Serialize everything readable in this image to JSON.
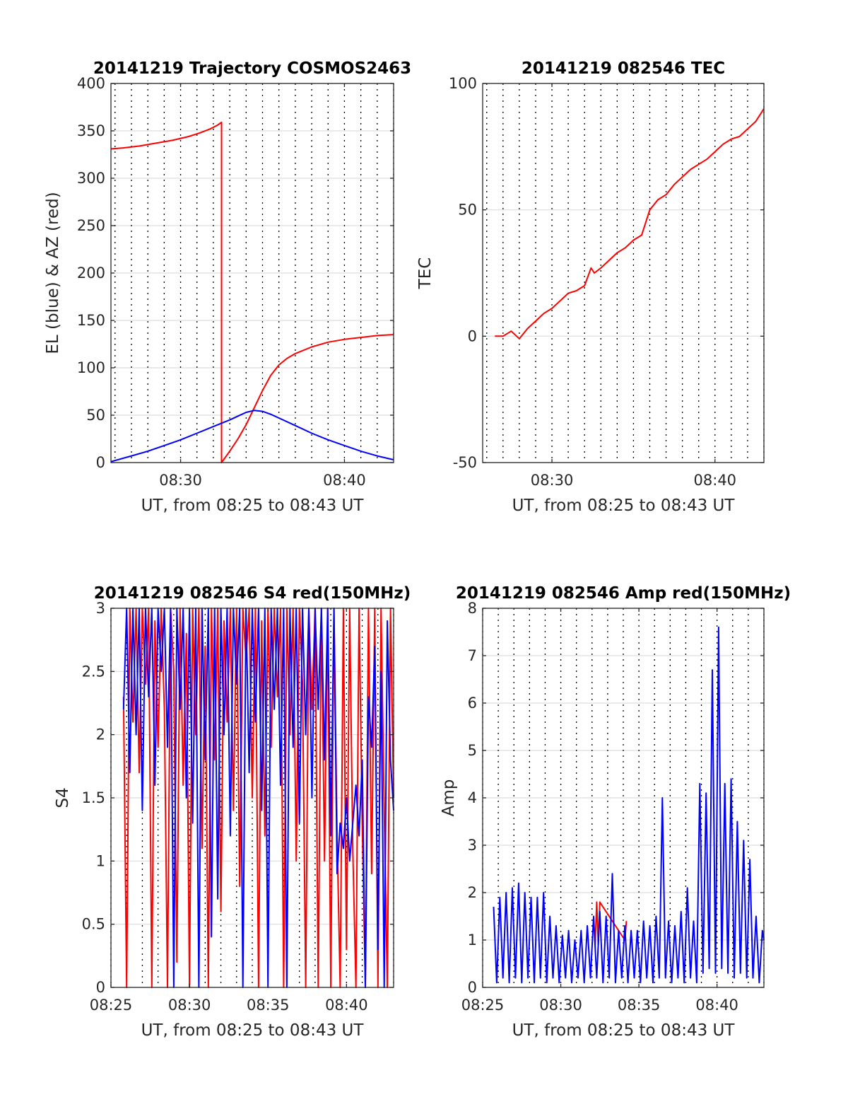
{
  "chart_data": [
    {
      "id": "traj",
      "type": "line",
      "title": "20141219 Trajectory COSMOS2463",
      "xlabel": "UT, from 08:25 to 08:43 UT",
      "ylabel": "EL (blue) & AZ (red)",
      "xlim_min": [
        25.75,
        43
      ],
      "ylim": [
        0,
        400
      ],
      "xticks": [
        {
          "v": 30,
          "label": "08:30"
        },
        {
          "v": 40,
          "label": "08:40"
        }
      ],
      "yticks": [
        {
          "v": 0,
          "label": "0"
        },
        {
          "v": 50,
          "label": "50"
        },
        {
          "v": 100,
          "label": "100"
        },
        {
          "v": 150,
          "label": "150"
        },
        {
          "v": 200,
          "label": "200"
        },
        {
          "v": 250,
          "label": "250"
        },
        {
          "v": 300,
          "label": "300"
        },
        {
          "v": 350,
          "label": "350"
        },
        {
          "v": 400,
          "label": "400"
        }
      ],
      "minute_gridlines": true,
      "series": [
        {
          "color": "#ff0000",
          "x": [
            25.75,
            26.5,
            27.5,
            28.5,
            29.5,
            30.5,
            31.2,
            31.8,
            32.25,
            32.5,
            32.5,
            33.0,
            33.5,
            34.0,
            34.5,
            35.0,
            35.5,
            36.0,
            36.5,
            37.0,
            38.0,
            39.0,
            40.0,
            41.0,
            42.0,
            43.0
          ],
          "y": [
            331,
            332,
            334,
            337,
            340,
            344,
            348,
            352,
            356,
            359,
            0,
            12,
            25,
            40,
            58,
            76,
            92,
            103,
            110,
            115,
            122,
            127,
            130,
            132,
            134,
            135
          ]
        },
        {
          "color": "#0000ff",
          "x": [
            25.75,
            27.0,
            28.0,
            29.0,
            30.0,
            31.0,
            32.0,
            33.0,
            33.5,
            34.0,
            34.5,
            35.0,
            35.5,
            36.0,
            37.0,
            38.0,
            39.0,
            40.0,
            41.0,
            42.0,
            43.0
          ],
          "y": [
            1,
            7,
            12,
            18,
            24,
            31,
            38,
            45,
            49,
            53,
            55,
            54,
            51,
            47,
            39,
            31,
            24,
            18,
            12,
            7,
            3
          ]
        }
      ]
    },
    {
      "id": "tec",
      "type": "line",
      "title": "20141219 082546 TEC",
      "xlabel": "UT, from 08:25 to 08:43 UT",
      "ylabel": "TEC",
      "xlim_min": [
        25.75,
        43
      ],
      "ylim": [
        -50,
        100
      ],
      "xticks": [
        {
          "v": 30,
          "label": "08:30"
        },
        {
          "v": 40,
          "label": "08:40"
        }
      ],
      "yticks": [
        {
          "v": -50,
          "label": "-50"
        },
        {
          "v": 0,
          "label": "0"
        },
        {
          "v": 50,
          "label": "50"
        },
        {
          "v": 100,
          "label": "100"
        }
      ],
      "minute_gridlines": true,
      "series": [
        {
          "color": "#ff0000",
          "x": [
            26.5,
            27.0,
            27.5,
            28.0,
            28.5,
            29.0,
            29.5,
            30.0,
            30.5,
            31.0,
            31.5,
            32.0,
            32.4,
            32.6,
            33.0,
            33.5,
            34.0,
            34.5,
            35.0,
            35.5,
            36.0,
            36.5,
            37.0,
            37.5,
            38.0,
            38.5,
            39.0,
            39.5,
            40.0,
            40.5,
            41.0,
            41.5,
            42.0,
            42.5,
            43.0
          ],
          "y": [
            0,
            0,
            2,
            -1,
            3,
            6,
            9,
            11,
            14,
            17,
            18,
            20,
            27,
            25,
            27,
            30,
            33,
            35,
            38,
            40,
            50,
            54,
            56,
            60,
            63,
            66,
            68,
            70,
            73,
            76,
            78,
            79,
            82,
            85,
            90
          ]
        }
      ]
    },
    {
      "id": "s4",
      "type": "line",
      "title": "20141219 082546 S4 red(150MHz)",
      "xlabel": "UT, from 08:25 to 08:43 UT",
      "ylabel": "S4",
      "xlim_min": [
        25,
        43
      ],
      "ylim": [
        0,
        3
      ],
      "xticks": [
        {
          "v": 25,
          "label": "08:25"
        },
        {
          "v": 30,
          "label": "08:30"
        },
        {
          "v": 35,
          "label": "08:35"
        },
        {
          "v": 40,
          "label": "08:40"
        }
      ],
      "yticks": [
        {
          "v": 0,
          "label": "0"
        },
        {
          "v": 0.5,
          "label": "0.5"
        },
        {
          "v": 1,
          "label": "1"
        },
        {
          "v": 1.5,
          "label": "1.5"
        },
        {
          "v": 2,
          "label": "2"
        },
        {
          "v": 2.5,
          "label": "2.5"
        },
        {
          "v": 3,
          "label": "3"
        }
      ],
      "minute_gridlines": true,
      "series": [
        {
          "color": "#ff0000",
          "x": [
            25.8,
            26.0,
            26.2,
            26.4,
            26.6,
            26.8,
            27.0,
            27.2,
            27.4,
            27.6,
            27.8,
            28.0,
            28.2,
            28.4,
            28.6,
            28.8,
            29.0,
            29.2,
            29.4,
            29.6,
            29.8,
            30.0,
            30.2,
            30.4,
            30.6,
            30.8,
            31.0,
            31.2,
            31.4,
            31.6,
            31.8,
            32.0,
            32.2,
            32.4,
            32.6,
            32.8,
            33.0,
            33.2,
            33.4,
            33.6,
            33.8,
            34.0,
            34.2,
            34.4,
            34.6,
            34.8,
            35.0,
            35.2,
            35.4,
            35.6,
            35.8,
            36.0,
            36.2,
            36.4,
            36.6,
            36.8,
            37.0,
            37.2,
            37.4,
            37.6,
            37.8,
            38.0,
            38.2,
            38.4,
            38.6,
            38.8,
            39.0,
            39.2,
            39.4,
            39.6,
            39.8,
            40.0,
            40.2,
            40.4,
            40.6,
            40.8,
            41.0,
            41.2,
            41.4,
            41.6,
            41.8,
            42.0,
            42.2,
            42.4,
            42.6,
            42.8,
            43.0
          ],
          "y": [
            2.3,
            0,
            3,
            2.1,
            3,
            1.7,
            3,
            2.4,
            3,
            0,
            2.9,
            1.9,
            3,
            2.2,
            0,
            3,
            2.5,
            0.2,
            3,
            1.6,
            2.8,
            0,
            3,
            2,
            3,
            1.1,
            2.7,
            0,
            3,
            1.8,
            3,
            0.6,
            2.9,
            2.1,
            3,
            1.4,
            3,
            0.8,
            3,
            2.6,
            3,
            1.5,
            3,
            0,
            2.9,
            1.2,
            3,
            1.9,
            3,
            2.3,
            3,
            0,
            3,
            2.0,
            3,
            1.0,
            3,
            2.4,
            0,
            3,
            2.2,
            3,
            0,
            3,
            1.0,
            3,
            0,
            3,
            1.2,
            0,
            3,
            0.3,
            3,
            1.1,
            0,
            3,
            1.3,
            0,
            3,
            0.9,
            3,
            0,
            3,
            1.4,
            0,
            3,
            1.5
          ]
        },
        {
          "color": "#0000ff",
          "x": [
            25.8,
            26.0,
            26.2,
            26.4,
            26.6,
            26.8,
            27.0,
            27.2,
            27.4,
            27.6,
            27.8,
            28.0,
            28.2,
            28.4,
            28.6,
            28.8,
            29.0,
            29.2,
            29.4,
            29.6,
            29.8,
            30.0,
            30.2,
            30.4,
            30.6,
            30.8,
            31.0,
            31.2,
            31.4,
            31.6,
            31.8,
            32.0,
            32.2,
            32.4,
            32.6,
            32.8,
            33.0,
            33.2,
            33.4,
            33.6,
            33.8,
            34.0,
            34.2,
            34.4,
            34.6,
            34.8,
            35.0,
            35.2,
            35.4,
            35.6,
            35.8,
            36.0,
            36.2,
            36.4,
            36.6,
            36.8,
            37.0,
            37.2,
            37.4,
            37.6,
            37.8,
            38.0,
            38.2,
            38.4,
            38.6,
            38.8,
            39.0,
            39.2,
            39.4,
            39.6,
            39.8,
            40.0,
            40.2,
            40.4,
            40.6,
            40.8,
            41.0,
            41.2,
            41.4,
            41.6,
            41.8,
            42.0,
            42.2,
            42.4,
            42.6,
            42.8,
            43.0
          ],
          "y": [
            2.2,
            3,
            1.7,
            3,
            2.0,
            3,
            1.4,
            3,
            2.3,
            3,
            1.6,
            3,
            2.5,
            3,
            1.9,
            3,
            0,
            3,
            2.2,
            3,
            1.5,
            3,
            1.3,
            3,
            0,
            3,
            1.8,
            3,
            0.4,
            3,
            0.7,
            3,
            2.0,
            3,
            1.2,
            3,
            2.4,
            3,
            0,
            3,
            1.7,
            3,
            2.1,
            3,
            1.4,
            3,
            0,
            3,
            2.2,
            3,
            1.6,
            3,
            0,
            3,
            1.9,
            3,
            1.3,
            3,
            2.0,
            3,
            1.5,
            3,
            2.2,
            3,
            1.8,
            3,
            1.2,
            3,
            0.9,
            1.3,
            1.1,
            1.5,
            1.0,
            1.3,
            1.6,
            1.2,
            1.8,
            0,
            2.3,
            1.9,
            2.7,
            0.3,
            2.5,
            0,
            2.9,
            1.8,
            1.4
          ]
        }
      ]
    },
    {
      "id": "amp",
      "type": "line",
      "title": "20141219 082546 Amp red(150MHz)",
      "xlabel": "UT, from 08:25 to 08:43 UT",
      "ylabel": "Amp",
      "xlim_min": [
        25,
        43
      ],
      "ylim": [
        0,
        8
      ],
      "xticks": [
        {
          "v": 25,
          "label": "08:25"
        },
        {
          "v": 30,
          "label": "08:30"
        },
        {
          "v": 35,
          "label": "08:35"
        },
        {
          "v": 40,
          "label": "08:40"
        }
      ],
      "yticks": [
        {
          "v": 0,
          "label": "0"
        },
        {
          "v": 1,
          "label": "1"
        },
        {
          "v": 2,
          "label": "2"
        },
        {
          "v": 3,
          "label": "3"
        },
        {
          "v": 4,
          "label": "4"
        },
        {
          "v": 5,
          "label": "5"
        },
        {
          "v": 6,
          "label": "6"
        },
        {
          "v": 7,
          "label": "7"
        },
        {
          "v": 8,
          "label": "8"
        }
      ],
      "minute_gridlines": true,
      "series": [
        {
          "color": "#ff0000",
          "x": [
            32.2,
            32.3,
            32.4,
            32.5,
            34.1,
            34.2
          ],
          "y": [
            0.9,
            1.8,
            0.9,
            1.8,
            1.0,
            1.4
          ]
        },
        {
          "color": "#0000ff",
          "x": [
            25.7,
            25.9,
            26.1,
            26.3,
            26.5,
            26.7,
            26.9,
            27.1,
            27.3,
            27.5,
            27.7,
            27.9,
            28.1,
            28.3,
            28.5,
            28.7,
            28.9,
            29.1,
            29.3,
            29.5,
            29.7,
            29.9,
            30.1,
            30.3,
            30.5,
            30.7,
            30.9,
            31.1,
            31.3,
            31.5,
            31.7,
            31.9,
            32.1,
            32.3,
            32.5,
            32.7,
            32.9,
            33.1,
            33.3,
            33.5,
            33.7,
            33.9,
            34.1,
            34.3,
            34.5,
            34.7,
            34.9,
            35.1,
            35.3,
            35.5,
            35.7,
            35.9,
            36.1,
            36.3,
            36.5,
            36.7,
            36.9,
            37.1,
            37.3,
            37.5,
            37.7,
            37.9,
            38.1,
            38.3,
            38.5,
            38.7,
            38.9,
            39.1,
            39.3,
            39.5,
            39.7,
            39.9,
            40.1,
            40.3,
            40.5,
            40.7,
            40.9,
            41.1,
            41.3,
            41.5,
            41.7,
            41.9,
            42.1,
            42.3,
            42.5,
            42.7,
            42.9,
            43.0
          ],
          "y": [
            1.7,
            0.1,
            1.9,
            0.2,
            2.0,
            0.1,
            2.1,
            0.2,
            2.2,
            0.1,
            2.0,
            0.2,
            1.9,
            0.1,
            1.9,
            0.2,
            2.0,
            0.1,
            1.5,
            0.2,
            1.3,
            0.1,
            1.1,
            0.2,
            1.2,
            0.1,
            1.0,
            0.2,
            1.2,
            0.1,
            1.3,
            0.2,
            1.5,
            0.2,
            1.6,
            0.1,
            1.5,
            0.2,
            2.4,
            0.1,
            1.2,
            0.2,
            1.3,
            0.1,
            1.2,
            0.2,
            1.2,
            0.1,
            1.4,
            0.2,
            1.3,
            0.1,
            1.5,
            0.2,
            4.0,
            0.2,
            1.4,
            0.1,
            1.3,
            0.2,
            1.6,
            0.1,
            2.1,
            0.2,
            1.4,
            0.1,
            4.3,
            0.3,
            4.1,
            0.4,
            6.7,
            0.3,
            7.6,
            0.4,
            4.3,
            0.3,
            4.4,
            0.2,
            3.5,
            0.3,
            3.1,
            0.2,
            2.7,
            0.2,
            1.5,
            0.1,
            1.2,
            1.0
          ]
        }
      ]
    }
  ]
}
